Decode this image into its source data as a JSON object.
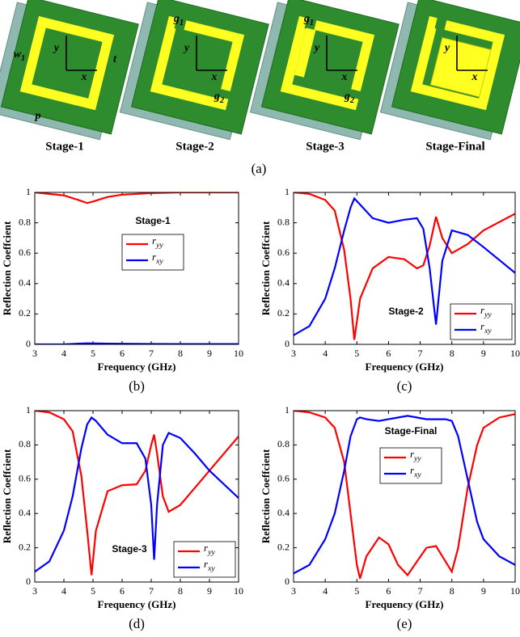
{
  "caption": "(a)",
  "diagrams": [
    {
      "label": "Stage-1",
      "annotations": [
        "y",
        "x",
        "w1",
        "t",
        "p"
      ]
    },
    {
      "label": "Stage-2",
      "annotations": [
        "g1",
        "y",
        "x",
        "g2"
      ]
    },
    {
      "label": "Stage-3",
      "annotations": [
        "g1",
        "y",
        "x",
        "g2"
      ]
    },
    {
      "label": "Stage-Final",
      "annotations": [
        "y",
        "x"
      ]
    }
  ],
  "chart_data": [
    {
      "type": "line",
      "title": "Stage-1",
      "caption": "(b)",
      "xlabel": "Frequency (GHz)",
      "ylabel": "Reflection Coeffcient",
      "x": [
        3,
        3.5,
        4,
        4.5,
        4.8,
        5,
        5.5,
        6,
        7,
        8,
        9,
        10
      ],
      "series": [
        {
          "name": "ryy",
          "color": "#ff0000",
          "values": [
            1,
            0.99,
            0.98,
            0.95,
            0.93,
            0.94,
            0.97,
            0.985,
            0.995,
            1,
            1,
            1
          ]
        },
        {
          "name": "rxy",
          "color": "#0000ff",
          "values": [
            0,
            0,
            0,
            0.005,
            0.007,
            0.006,
            0.005,
            0.004,
            0.003,
            0.002,
            0.002,
            0.002
          ]
        }
      ],
      "xlim": [
        3,
        10
      ],
      "xticks": [
        3,
        4,
        5,
        6,
        7,
        8,
        9,
        10
      ],
      "ylim": [
        0,
        1
      ],
      "yticks": [
        0,
        0.2,
        0.4,
        0.6,
        0.8,
        1
      ],
      "legend": "center"
    },
    {
      "type": "line",
      "title": "Stage-2",
      "caption": "(c)",
      "xlabel": "Frequency (GHz)",
      "ylabel": "Reflection Coeffcient",
      "x": [
        3,
        3.5,
        4,
        4.3,
        4.6,
        4.8,
        4.92,
        5.1,
        5.5,
        6,
        6.5,
        6.9,
        7.1,
        7.3,
        7.5,
        7.7,
        8,
        8.5,
        9,
        10
      ],
      "series": [
        {
          "name": "ryy",
          "color": "#ff0000",
          "values": [
            1,
            0.99,
            0.95,
            0.88,
            0.62,
            0.3,
            0.03,
            0.3,
            0.5,
            0.575,
            0.56,
            0.5,
            0.52,
            0.65,
            0.84,
            0.7,
            0.6,
            0.66,
            0.75,
            0.86
          ]
        },
        {
          "name": "rxy",
          "color": "#0000ff",
          "values": [
            0.06,
            0.12,
            0.3,
            0.5,
            0.75,
            0.9,
            0.96,
            0.92,
            0.83,
            0.8,
            0.82,
            0.83,
            0.76,
            0.5,
            0.13,
            0.55,
            0.75,
            0.72,
            0.64,
            0.47
          ]
        }
      ],
      "xlim": [
        3,
        10
      ],
      "xticks": [
        3,
        4,
        5,
        6,
        7,
        8,
        9,
        10
      ],
      "ylim": [
        0,
        1
      ],
      "yticks": [
        0,
        0.2,
        0.4,
        0.6,
        0.8,
        1
      ],
      "legend": "lower right"
    },
    {
      "type": "line",
      "title": "Stage-3",
      "caption": "(d)",
      "xlabel": "Frequency (GHz)",
      "ylabel": "Reflection Coeffcient",
      "x": [
        3,
        3.5,
        4,
        4.3,
        4.6,
        4.8,
        4.95,
        5.1,
        5.5,
        6,
        6.5,
        6.8,
        7,
        7.1,
        7.2,
        7.4,
        7.6,
        8,
        8.5,
        9,
        10
      ],
      "series": [
        {
          "name": "ryy",
          "color": "#ff0000",
          "values": [
            1,
            0.99,
            0.95,
            0.88,
            0.62,
            0.3,
            0.04,
            0.3,
            0.53,
            0.565,
            0.57,
            0.65,
            0.8,
            0.86,
            0.75,
            0.5,
            0.41,
            0.45,
            0.55,
            0.65,
            0.85
          ]
        },
        {
          "name": "rxy",
          "color": "#0000ff",
          "values": [
            0.06,
            0.12,
            0.3,
            0.5,
            0.78,
            0.92,
            0.96,
            0.94,
            0.86,
            0.81,
            0.81,
            0.72,
            0.45,
            0.13,
            0.45,
            0.8,
            0.87,
            0.84,
            0.75,
            0.65,
            0.49
          ]
        }
      ],
      "xlim": [
        3,
        10
      ],
      "xticks": [
        3,
        4,
        5,
        6,
        7,
        8,
        9,
        10
      ],
      "ylim": [
        0,
        1
      ],
      "yticks": [
        0,
        0.2,
        0.4,
        0.6,
        0.8,
        1
      ],
      "legend": "lower right"
    },
    {
      "type": "line",
      "title": "Stage-Final",
      "caption": "(e)",
      "xlabel": "Frequency (GHz)",
      "ylabel": "Reflection Coeffcient",
      "x": [
        3,
        3.5,
        4,
        4.3,
        4.6,
        4.8,
        5,
        5.1,
        5.3,
        5.7,
        6,
        6.3,
        6.6,
        6.9,
        7.2,
        7.5,
        7.8,
        8,
        8.2,
        8.5,
        8.8,
        9,
        9.5,
        10
      ],
      "series": [
        {
          "name": "ryy",
          "color": "#ff0000",
          "values": [
            1,
            0.99,
            0.96,
            0.9,
            0.7,
            0.4,
            0.1,
            0.02,
            0.15,
            0.26,
            0.22,
            0.1,
            0.04,
            0.12,
            0.2,
            0.21,
            0.12,
            0.06,
            0.2,
            0.55,
            0.8,
            0.9,
            0.96,
            0.98
          ]
        },
        {
          "name": "rxy",
          "color": "#0000ff",
          "values": [
            0.05,
            0.1,
            0.25,
            0.4,
            0.65,
            0.85,
            0.95,
            0.96,
            0.95,
            0.94,
            0.95,
            0.96,
            0.97,
            0.96,
            0.95,
            0.95,
            0.95,
            0.94,
            0.85,
            0.6,
            0.35,
            0.25,
            0.15,
            0.1
          ]
        }
      ],
      "xlim": [
        3,
        10
      ],
      "xticks": [
        3,
        4,
        5,
        6,
        7,
        8,
        9,
        10
      ],
      "ylim": [
        0,
        1
      ],
      "yticks": [
        0,
        0.2,
        0.4,
        0.6,
        0.8,
        1
      ],
      "legend": "upper center"
    }
  ]
}
